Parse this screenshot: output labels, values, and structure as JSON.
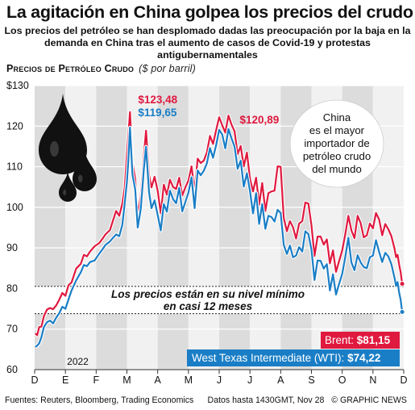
{
  "header": {
    "title": "La agitación en China golpea los precios del crudo",
    "subtitle": "Los precios del petróleo se han desplomado dadas las preocupación por la baja en la demanda en China tras el aumento de casos de Covid-19 y protestas antigubernamentales"
  },
  "chart_heading": "Precios de Petróleo Crudo",
  "chart_unit": "($ por barril)",
  "footer": {
    "sources": "Fuentes: Reuters, Bloomberg, Trading Economics",
    "data_note": "Datos hasta 1430GMT, Nov 28",
    "credit": "© GRAPHIC NEWS"
  },
  "chart_data": {
    "type": "line",
    "title": "Precios de Petróleo Crudo",
    "ylabel": "($ por barril)",
    "xlabel": "",
    "ylim": [
      60,
      130
    ],
    "xlim": [
      0,
      12
    ],
    "yticks": [
      60,
      70,
      80,
      90,
      100,
      110,
      120,
      130
    ],
    "ytick_labels": [
      "60",
      "70",
      "80",
      "90",
      "100",
      "110",
      "120",
      "$130"
    ],
    "month_labels": [
      "D",
      "E",
      "F",
      "M",
      "A",
      "M",
      "J",
      "J",
      "A",
      "S",
      "O",
      "N",
      "D"
    ],
    "year_label": "2022",
    "series": [
      {
        "name": "Brent",
        "color": "#e0193f",
        "points": [
          [
            0.02,
            68.9
          ],
          [
            0.08,
            68.5
          ],
          [
            0.15,
            70.5
          ],
          [
            0.22,
            70.6
          ],
          [
            0.3,
            73.2
          ],
          [
            0.4,
            74.8
          ],
          [
            0.5,
            75.2
          ],
          [
            0.6,
            74.9
          ],
          [
            0.7,
            75.8
          ],
          [
            0.8,
            77.2
          ],
          [
            0.9,
            78.9
          ],
          [
            1.0,
            78.2
          ],
          [
            1.1,
            80.8
          ],
          [
            1.2,
            81.5
          ],
          [
            1.35,
            84.9
          ],
          [
            1.5,
            86.1
          ],
          [
            1.6,
            88.3
          ],
          [
            1.7,
            87.9
          ],
          [
            1.8,
            89.1
          ],
          [
            1.95,
            90.4
          ],
          [
            2.1,
            91.2
          ],
          [
            2.2,
            92.2
          ],
          [
            2.3,
            93.3
          ],
          [
            2.45,
            94.4
          ],
          [
            2.55,
            96.8
          ],
          [
            2.65,
            99.1
          ],
          [
            2.75,
            97.9
          ],
          [
            2.85,
            100.9
          ],
          [
            2.93,
            104.9
          ],
          [
            3.0,
            112.9
          ],
          [
            3.05,
            118.1
          ],
          [
            3.1,
            123.48
          ],
          [
            3.18,
            111.1
          ],
          [
            3.27,
            106.9
          ],
          [
            3.35,
            98.0
          ],
          [
            3.45,
            102.9
          ],
          [
            3.55,
            112.5
          ],
          [
            3.62,
            118.9
          ],
          [
            3.72,
            107.9
          ],
          [
            3.8,
            104.9
          ],
          [
            3.9,
            107.5
          ],
          [
            4.0,
            104.1
          ],
          [
            4.1,
            98.5
          ],
          [
            4.2,
            105.6
          ],
          [
            4.3,
            103.1
          ],
          [
            4.4,
            106.8
          ],
          [
            4.5,
            105.0
          ],
          [
            4.6,
            104.5
          ],
          [
            4.7,
            107.3
          ],
          [
            4.8,
            102.9
          ],
          [
            4.9,
            104.9
          ],
          [
            5.0,
            106.6
          ],
          [
            5.1,
            110.1
          ],
          [
            5.2,
            104.0
          ],
          [
            5.3,
            112.0
          ],
          [
            5.4,
            110.9
          ],
          [
            5.5,
            111.5
          ],
          [
            5.6,
            113.5
          ],
          [
            5.7,
            117.6
          ],
          [
            5.8,
            115.6
          ],
          [
            5.9,
            119.0
          ],
          [
            6.0,
            122.2
          ],
          [
            6.1,
            120.2
          ],
          [
            6.2,
            118.4
          ],
          [
            6.3,
            122.6
          ],
          [
            6.4,
            120.4
          ],
          [
            6.5,
            118.7
          ],
          [
            6.6,
            113.1
          ],
          [
            6.7,
            115.1
          ],
          [
            6.8,
            110.1
          ],
          [
            6.9,
            113.5
          ],
          [
            7.0,
            107.1
          ],
          [
            7.1,
            103.9
          ],
          [
            7.2,
            107.3
          ],
          [
            7.3,
            100.6
          ],
          [
            7.4,
            106.0
          ],
          [
            7.5,
            99.1
          ],
          [
            7.6,
            103.5
          ],
          [
            7.7,
            103.9
          ],
          [
            7.8,
            104.1
          ],
          [
            7.9,
            110.1
          ],
          [
            8.0,
            110.0
          ],
          [
            8.1,
            97.4
          ],
          [
            8.2,
            94.1
          ],
          [
            8.3,
            96.6
          ],
          [
            8.4,
            95.1
          ],
          [
            8.5,
            92.3
          ],
          [
            8.6,
            96.0
          ],
          [
            8.7,
            96.6
          ],
          [
            8.8,
            101.2
          ],
          [
            8.9,
            100.9
          ],
          [
            9.0,
            95.6
          ],
          [
            9.1,
            88.0
          ],
          [
            9.2,
            92.8
          ],
          [
            9.3,
            92.8
          ],
          [
            9.4,
            90.8
          ],
          [
            9.5,
            92.1
          ],
          [
            9.6,
            86.2
          ],
          [
            9.7,
            89.4
          ],
          [
            9.8,
            84.1
          ],
          [
            9.9,
            86.8
          ],
          [
            10.0,
            89.4
          ],
          [
            10.1,
            93.4
          ],
          [
            10.2,
            97.9
          ],
          [
            10.3,
            94.3
          ],
          [
            10.4,
            92.4
          ],
          [
            10.5,
            97.9
          ],
          [
            10.6,
            96.1
          ],
          [
            10.7,
            92.6
          ],
          [
            10.8,
            93.1
          ],
          [
            10.9,
            96.0
          ],
          [
            11.0,
            94.8
          ],
          [
            11.1,
            98.6
          ],
          [
            11.2,
            97.0
          ],
          [
            11.3,
            93.1
          ],
          [
            11.4,
            95.9
          ],
          [
            11.5,
            94.6
          ],
          [
            11.6,
            92.9
          ],
          [
            11.7,
            89.8
          ],
          [
            11.75,
            87.7
          ],
          [
            11.8,
            88.3
          ],
          [
            11.85,
            85.9
          ],
          [
            11.9,
            84.0
          ],
          [
            11.95,
            81.15
          ]
        ]
      },
      {
        "name": "West Texas Intermediate (WTI)",
        "color": "#1a7ec6",
        "points": [
          [
            0.02,
            65.6
          ],
          [
            0.08,
            65.9
          ],
          [
            0.15,
            66.5
          ],
          [
            0.22,
            68.0
          ],
          [
            0.3,
            70.5
          ],
          [
            0.4,
            71.7
          ],
          [
            0.5,
            72.1
          ],
          [
            0.6,
            71.4
          ],
          [
            0.7,
            72.8
          ],
          [
            0.8,
            73.9
          ],
          [
            0.9,
            75.5
          ],
          [
            1.0,
            75.0
          ],
          [
            1.1,
            77.3
          ],
          [
            1.2,
            79.5
          ],
          [
            1.35,
            82.0
          ],
          [
            1.5,
            84.0
          ],
          [
            1.6,
            85.8
          ],
          [
            1.7,
            85.5
          ],
          [
            1.8,
            86.5
          ],
          [
            1.95,
            86.9
          ],
          [
            2.1,
            88.6
          ],
          [
            2.2,
            89.6
          ],
          [
            2.3,
            90.7
          ],
          [
            2.45,
            91.6
          ],
          [
            2.55,
            92.5
          ],
          [
            2.65,
            93.3
          ],
          [
            2.75,
            92.9
          ],
          [
            2.85,
            95.7
          ],
          [
            2.93,
            101.0
          ],
          [
            3.0,
            106.3
          ],
          [
            3.05,
            111.9
          ],
          [
            3.1,
            119.65
          ],
          [
            3.18,
            108.0
          ],
          [
            3.27,
            104.4
          ],
          [
            3.35,
            95.0
          ],
          [
            3.45,
            99.6
          ],
          [
            3.55,
            109.4
          ],
          [
            3.62,
            114.9
          ],
          [
            3.72,
            103.7
          ],
          [
            3.8,
            99.8
          ],
          [
            3.9,
            101.7
          ],
          [
            4.0,
            98.1
          ],
          [
            4.1,
            94.3
          ],
          [
            4.2,
            100.8
          ],
          [
            4.3,
            98.9
          ],
          [
            4.4,
            104.1
          ],
          [
            4.5,
            102.0
          ],
          [
            4.6,
            101.0
          ],
          [
            4.7,
            104.8
          ],
          [
            4.8,
            99.0
          ],
          [
            4.9,
            101.3
          ],
          [
            5.0,
            103.6
          ],
          [
            5.1,
            107.4
          ],
          [
            5.2,
            99.8
          ],
          [
            5.3,
            109.1
          ],
          [
            5.4,
            107.9
          ],
          [
            5.5,
            109.0
          ],
          [
            5.6,
            110.8
          ],
          [
            5.7,
            114.6
          ],
          [
            5.8,
            112.2
          ],
          [
            5.9,
            115.3
          ],
          [
            6.0,
            119.1
          ],
          [
            6.1,
            117.9
          ],
          [
            6.2,
            114.5
          ],
          [
            6.3,
            119.3
          ],
          [
            6.4,
            117.0
          ],
          [
            6.5,
            114.9
          ],
          [
            6.6,
            109.5
          ],
          [
            6.7,
            111.5
          ],
          [
            6.8,
            105.1
          ],
          [
            6.9,
            108.4
          ],
          [
            7.0,
            104.0
          ],
          [
            7.1,
            98.5
          ],
          [
            7.2,
            103.5
          ],
          [
            7.3,
            95.9
          ],
          [
            7.4,
            100.8
          ],
          [
            7.5,
            94.7
          ],
          [
            7.6,
            97.9
          ],
          [
            7.7,
            97.6
          ],
          [
            7.8,
            96.5
          ],
          [
            7.9,
            99.4
          ],
          [
            8.0,
            98.6
          ],
          [
            8.1,
            90.8
          ],
          [
            8.2,
            88.5
          ],
          [
            8.3,
            90.6
          ],
          [
            8.4,
            87.7
          ],
          [
            8.5,
            88.1
          ],
          [
            8.6,
            90.2
          ],
          [
            8.7,
            89.1
          ],
          [
            8.8,
            94.1
          ],
          [
            8.9,
            93.4
          ],
          [
            9.0,
            89.6
          ],
          [
            9.1,
            82.1
          ],
          [
            9.2,
            86.9
          ],
          [
            9.3,
            86.8
          ],
          [
            9.4,
            84.9
          ],
          [
            9.5,
            86.0
          ],
          [
            9.6,
            79.5
          ],
          [
            9.7,
            83.5
          ],
          [
            9.8,
            78.5
          ],
          [
            9.9,
            81.2
          ],
          [
            10.0,
            83.6
          ],
          [
            10.1,
            87.8
          ],
          [
            10.2,
            92.5
          ],
          [
            10.3,
            86.4
          ],
          [
            10.4,
            84.5
          ],
          [
            10.5,
            88.2
          ],
          [
            10.6,
            86.4
          ],
          [
            10.7,
            85.3
          ],
          [
            10.8,
            85.0
          ],
          [
            10.9,
            87.7
          ],
          [
            11.0,
            88.1
          ],
          [
            11.1,
            91.9
          ],
          [
            11.2,
            89.0
          ],
          [
            11.3,
            86.5
          ],
          [
            11.4,
            88.8
          ],
          [
            11.5,
            87.9
          ],
          [
            11.6,
            86.0
          ],
          [
            11.7,
            82.6
          ],
          [
            11.75,
            80.6
          ],
          [
            11.8,
            81.6
          ],
          [
            11.85,
            79.0
          ],
          [
            11.9,
            77.2
          ],
          [
            11.95,
            74.22
          ]
        ]
      }
    ],
    "annotations": [
      {
        "text": "$123,48",
        "series": "Brent",
        "x": 3.1,
        "y": 123.48
      },
      {
        "text": "$119,65",
        "series": "WTI",
        "x": 3.1,
        "y": 119.65
      },
      {
        "text": "$120,89",
        "series": "Brent",
        "x": 6.3,
        "y": 120.89
      }
    ],
    "band": {
      "y_top": 80.5,
      "y_bottom": 73.8,
      "text_line1": "Los precios están en su nivel mínimo",
      "text_line2": "en casi 12 meses"
    },
    "callout": {
      "line1": "China",
      "line2": "es el mayor",
      "line3": "importador de",
      "line4": "petróleo crudo",
      "line5": "del mundo"
    },
    "end_labels": [
      {
        "series": "Brent",
        "label": "Brent:",
        "value": "$81,15"
      },
      {
        "series": "WTI",
        "label": "West Texas Intermediate (WTI):",
        "value": "$74,22"
      }
    ]
  }
}
